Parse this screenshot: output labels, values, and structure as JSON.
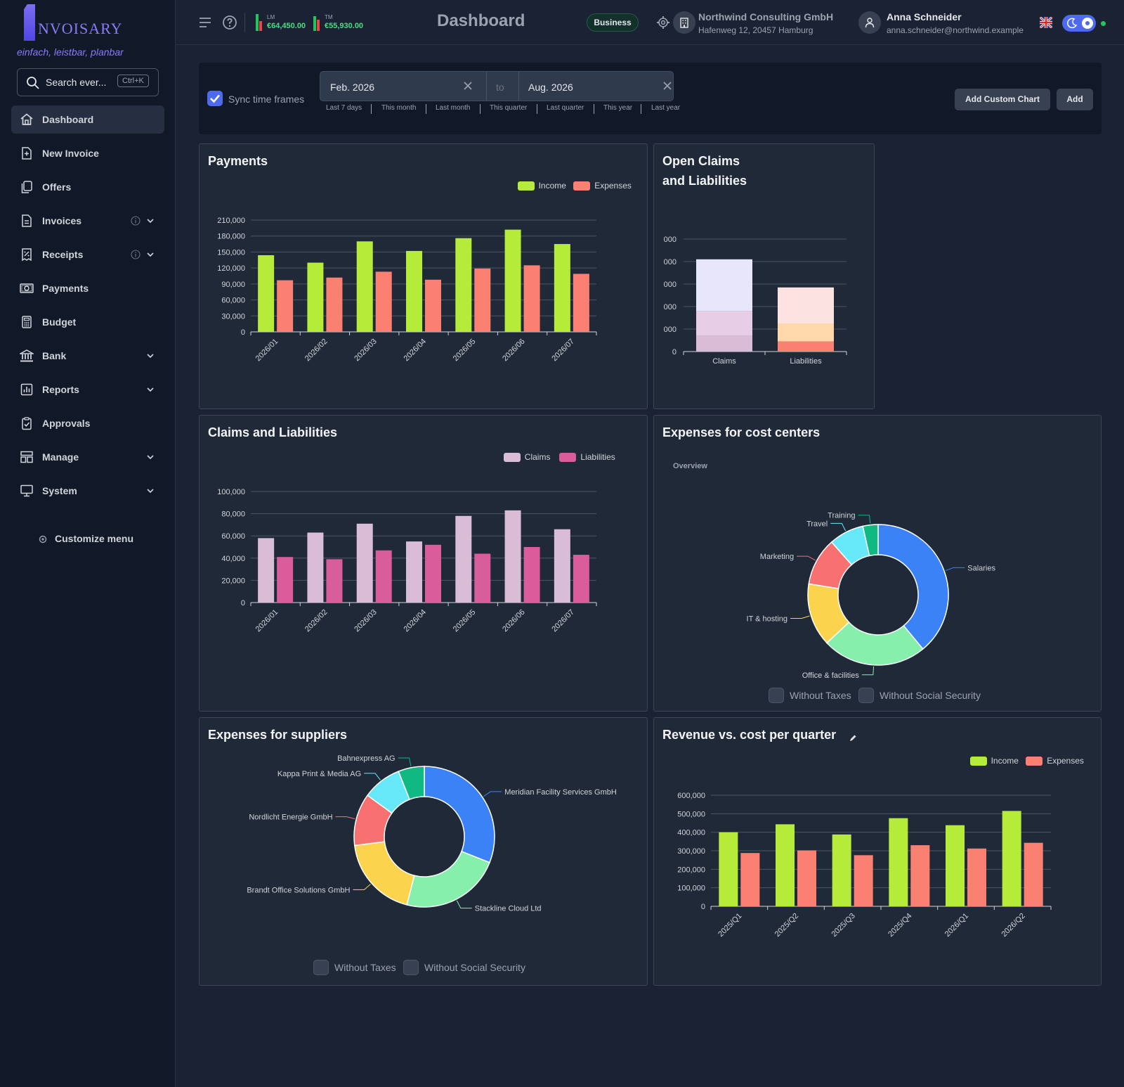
{
  "brand": {
    "name": "NVOISARY",
    "tagline": "einfach, leistbar, planbar"
  },
  "search": {
    "placeholder": "Search ever...",
    "shortcut": "Ctrl+K"
  },
  "sidebar": {
    "items": [
      {
        "label": "Dashboard",
        "icon": "home-icon",
        "active": true
      },
      {
        "label": "New Invoice",
        "icon": "file-plus-icon"
      },
      {
        "label": "Offers",
        "icon": "copy-icon"
      },
      {
        "label": "Invoices",
        "icon": "file-text-icon",
        "info": true,
        "expandable": true
      },
      {
        "label": "Receipts",
        "icon": "receipt-percent-icon",
        "info": true,
        "expandable": true
      },
      {
        "label": "Payments",
        "icon": "banknote-icon"
      },
      {
        "label": "Budget",
        "icon": "calculator-icon"
      },
      {
        "label": "Bank",
        "icon": "bank-icon",
        "expandable": true
      },
      {
        "label": "Reports",
        "icon": "bar-chart-icon",
        "expandable": true
      },
      {
        "label": "Approvals",
        "icon": "clipboard-check-icon"
      },
      {
        "label": "Manage",
        "icon": "layout-icon",
        "expandable": true
      },
      {
        "label": "System",
        "icon": "monitor-icon",
        "expandable": true
      }
    ],
    "customize_label": "Customize menu"
  },
  "topbar": {
    "lm_label": "LM",
    "lm_value": "€64,450.00",
    "tm_label": "TM",
    "tm_value": "€55,930.00",
    "title": "Dashboard",
    "badge": "Business",
    "company_name": "Northwind Consulting GmbH",
    "company_address": "Hafenweg 12, 20457 Hamburg",
    "user_name": "Anna Schneider",
    "user_email": "anna.schneider@northwind.example",
    "status_color": "#22c55e"
  },
  "filter": {
    "sync_label": "Sync time frames",
    "sync_checked": true,
    "from": "Feb. 2026",
    "to_label": "to",
    "to": "Aug. 2026",
    "quick_ranges": [
      "Last 7 days",
      "This month",
      "Last month",
      "This quarter",
      "Last quarter",
      "This year",
      "Last year"
    ],
    "add_custom_chart": "Add Custom Chart",
    "add": "Add"
  },
  "colors": {
    "income": "#b5ec3a",
    "expenses": "#fa8072",
    "claims": "#d9bcd6",
    "liabilities": "#d95d9a",
    "accent": "#4f6bed"
  },
  "chart_data": [
    {
      "id": "payments",
      "type": "bar",
      "title": "Payments",
      "categories": [
        "2026/01",
        "2026/02",
        "2026/03",
        "2026/04",
        "2026/05",
        "2026/06",
        "2026/07"
      ],
      "series": [
        {
          "name": "Income",
          "values": [
            144000,
            130000,
            170000,
            152000,
            176000,
            192000,
            165000
          ]
        },
        {
          "name": "Expenses",
          "values": [
            97000,
            102000,
            113000,
            98000,
            119000,
            125000,
            109000
          ]
        }
      ],
      "yticks": [
        "0",
        "30,000",
        "60,000",
        "90,000",
        "120,000",
        "150,000",
        "180,000",
        "210,000"
      ],
      "ylim": [
        0,
        210000
      ],
      "legend": "top-right"
    },
    {
      "id": "open_claims",
      "type": "bar",
      "stacked": true,
      "title_line1": "Open Claims",
      "title_line2": "and Liabilities",
      "categories": [
        "Claims",
        "Liabilities"
      ],
      "yticks": [
        "0",
        "000",
        "000",
        "000",
        "000",
        "000"
      ],
      "ylim": [
        0,
        5
      ],
      "stacks": [
        {
          "segments": [
            {
              "value": 0.7,
              "color": "#d9bcd6"
            },
            {
              "value": 1.1,
              "color": "#e8cde6"
            },
            {
              "value": 2.3,
              "color": "#e7e6fa"
            }
          ]
        },
        {
          "segments": [
            {
              "value": 0.45,
              "color": "#fa8072"
            },
            {
              "value": 0.8,
              "color": "#fed7aa"
            },
            {
              "value": 1.6,
              "color": "#fde2e2"
            }
          ]
        }
      ]
    },
    {
      "id": "claims_liabilities",
      "type": "bar",
      "title": "Claims and Liabilities",
      "categories": [
        "2026/01",
        "2026/02",
        "2026/03",
        "2026/04",
        "2026/05",
        "2026/06",
        "2026/07"
      ],
      "series": [
        {
          "name": "Claims",
          "values": [
            58000,
            63000,
            71000,
            55000,
            78000,
            83000,
            66000
          ]
        },
        {
          "name": "Liabilities",
          "values": [
            41000,
            39000,
            47000,
            52000,
            44000,
            50000,
            43000
          ]
        }
      ],
      "yticks": [
        "0",
        "20,000",
        "40,000",
        "60,000",
        "80,000",
        "100,000"
      ],
      "ylim": [
        0,
        100000
      ],
      "legend": "top-right"
    },
    {
      "id": "cost_centers",
      "type": "pie",
      "donut": true,
      "title": "Expenses for cost centers",
      "subtitle": "Overview",
      "slices": [
        {
          "label": "Salaries",
          "value": 39,
          "color": "#3b82f6"
        },
        {
          "label": "Office & facilities",
          "value": 24,
          "color": "#86efac"
        },
        {
          "label": "IT & hosting",
          "value": 14.5,
          "color": "#fcd34d"
        },
        {
          "label": "Marketing",
          "value": 11,
          "color": "#f87171"
        },
        {
          "label": "Travel",
          "value": 8,
          "color": "#67e8f9"
        },
        {
          "label": "Training",
          "value": 3.5,
          "color": "#10b981"
        }
      ],
      "checkboxes": [
        "Without Taxes",
        "Without Social Security"
      ]
    },
    {
      "id": "suppliers",
      "type": "pie",
      "donut": true,
      "title": "Expenses for suppliers",
      "slices": [
        {
          "label": "Meridian Facility Services GmbH",
          "value": 31,
          "color": "#3b82f6"
        },
        {
          "label": "Stackline Cloud Ltd",
          "value": 23,
          "color": "#86efac"
        },
        {
          "label": "Brandt Office Solutions GmbH",
          "value": 19,
          "color": "#fcd34d"
        },
        {
          "label": "Nordlicht Energie GmbH",
          "value": 12,
          "color": "#f87171"
        },
        {
          "label": "Kappa Print & Media AG",
          "value": 9,
          "color": "#67e8f9"
        },
        {
          "label": "Bahnexpress AG",
          "value": 6,
          "color": "#10b981"
        }
      ],
      "checkboxes": [
        "Without Taxes",
        "Without Social Security"
      ]
    },
    {
      "id": "revenue_cost",
      "type": "bar",
      "title": "Revenue vs. cost per quarter",
      "categories": [
        "2025/Q1",
        "2025/Q2",
        "2025/Q3",
        "2025/Q4",
        "2026/Q1",
        "2026/Q2"
      ],
      "series": [
        {
          "name": "Income",
          "values": [
            400000,
            443000,
            388000,
            476000,
            438000,
            515000
          ]
        },
        {
          "name": "Expenses",
          "values": [
            288000,
            302000,
            276000,
            330000,
            312000,
            343000
          ]
        }
      ],
      "yticks": [
        "0",
        "100,000",
        "200,000",
        "300,000",
        "400,000",
        "500,000",
        "600,000"
      ],
      "ylim": [
        0,
        600000
      ],
      "legend": "top-right"
    }
  ]
}
